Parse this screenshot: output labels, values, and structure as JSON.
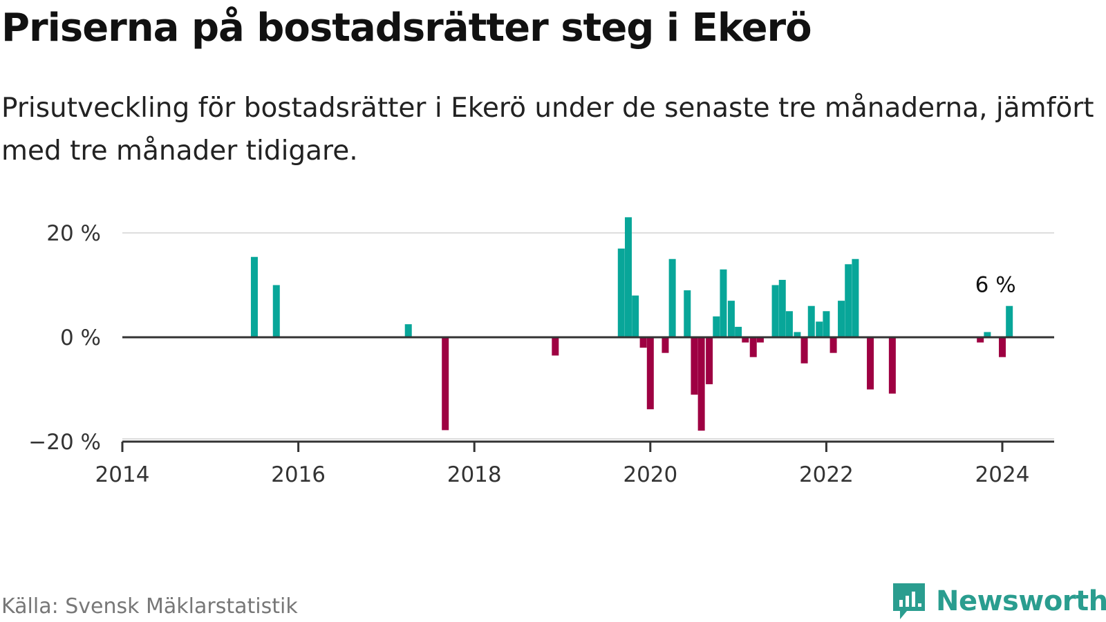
{
  "title": "Priserna på bostadsrätter steg i Ekerö",
  "subtitle": "Prisutveckling för bostadsrätter i Ekerö under de senaste tre månaderna, jämfört med tre månader tidigare.",
  "source": "Källa: Svensk Mäklarstatistik",
  "brand": "Newsworthy",
  "colors": {
    "positive": "#08a699",
    "negative": "#9e0142",
    "grid": "#dddddd",
    "axis": "#333333"
  },
  "chart_data": {
    "type": "bar",
    "title": "Priserna på bostadsrätter steg i Ekerö",
    "xlabel": "",
    "ylabel": "",
    "xlim": [
      2014.0,
      2024.6
    ],
    "ylim": [
      -20,
      20
    ],
    "x_ticks": [
      {
        "value": 2014,
        "label": "2014"
      },
      {
        "value": 2016,
        "label": "2016"
      },
      {
        "value": 2018,
        "label": "2018"
      },
      {
        "value": 2020,
        "label": "2020"
      },
      {
        "value": 2022,
        "label": "2022"
      },
      {
        "value": 2024,
        "label": "2024"
      }
    ],
    "y_ticks": [
      {
        "value": 20,
        "label": "20 %"
      },
      {
        "value": 0,
        "label": "0 %"
      },
      {
        "value": -20,
        "label": "−20 %"
      }
    ],
    "annotation": {
      "x": 2024.08,
      "value": 6,
      "label": "6 %"
    },
    "points": [
      {
        "x": 2015.5,
        "value": 15.4
      },
      {
        "x": 2015.75,
        "value": 10
      },
      {
        "x": 2017.25,
        "value": 2.5
      },
      {
        "x": 2017.67,
        "value": -17.8
      },
      {
        "x": 2018.92,
        "value": -3.5
      },
      {
        "x": 2019.67,
        "value": 17
      },
      {
        "x": 2019.75,
        "value": 23
      },
      {
        "x": 2019.83,
        "value": 8
      },
      {
        "x": 2019.92,
        "value": -2
      },
      {
        "x": 2020.0,
        "value": -13.8
      },
      {
        "x": 2020.17,
        "value": -3
      },
      {
        "x": 2020.25,
        "value": 15
      },
      {
        "x": 2020.42,
        "value": 9
      },
      {
        "x": 2020.5,
        "value": -11
      },
      {
        "x": 2020.58,
        "value": -17.9
      },
      {
        "x": 2020.67,
        "value": -9
      },
      {
        "x": 2020.75,
        "value": 4
      },
      {
        "x": 2020.83,
        "value": 13
      },
      {
        "x": 2020.92,
        "value": 7
      },
      {
        "x": 2021.0,
        "value": 2
      },
      {
        "x": 2021.08,
        "value": -1
      },
      {
        "x": 2021.17,
        "value": -3.8
      },
      {
        "x": 2021.25,
        "value": -1
      },
      {
        "x": 2021.42,
        "value": 10
      },
      {
        "x": 2021.5,
        "value": 11
      },
      {
        "x": 2021.58,
        "value": 5
      },
      {
        "x": 2021.67,
        "value": 1
      },
      {
        "x": 2021.75,
        "value": -5
      },
      {
        "x": 2021.83,
        "value": 6
      },
      {
        "x": 2021.92,
        "value": 3
      },
      {
        "x": 2022.0,
        "value": 5
      },
      {
        "x": 2022.08,
        "value": -3
      },
      {
        "x": 2022.17,
        "value": 7
      },
      {
        "x": 2022.25,
        "value": 14
      },
      {
        "x": 2022.33,
        "value": 15
      },
      {
        "x": 2022.5,
        "value": -10
      },
      {
        "x": 2022.75,
        "value": -10.8
      },
      {
        "x": 2023.75,
        "value": -1
      },
      {
        "x": 2023.83,
        "value": 1
      },
      {
        "x": 2024.0,
        "value": -3.8
      },
      {
        "x": 2024.08,
        "value": 6
      }
    ]
  }
}
